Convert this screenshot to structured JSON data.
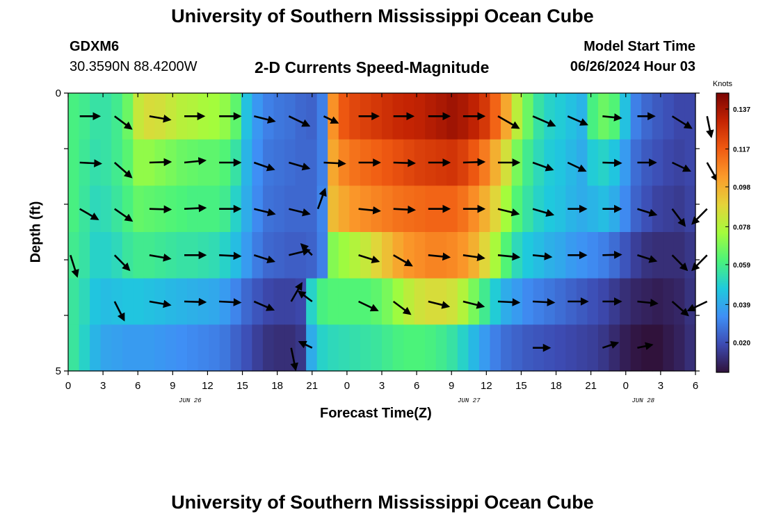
{
  "header": {
    "title": "University of Southern Mississippi Ocean Cube",
    "station": "GDXM6",
    "coords": "30.3590N  88.4200W",
    "subtitle": "2-D Currents Speed-Magnitude",
    "model_start_label": "Model Start Time",
    "model_start_value": "06/26/2024 Hour 03"
  },
  "footer": {
    "title": "University of Southern Mississippi Ocean Cube"
  },
  "colors": {
    "scale": [
      "#30123b",
      "#3d4bb2",
      "#3f8ff5",
      "#1fc9dd",
      "#4bf37a",
      "#a4fc3c",
      "#e5d33a",
      "#fb9b2b",
      "#f05b12",
      "#c42403",
      "#7a0403"
    ]
  },
  "chart_data": {
    "type": "heatmap",
    "xlabel": "Forecast Time(Z)",
    "ylabel": "Depth (ft)",
    "x_ticks": [
      "0",
      "3",
      "6",
      "9",
      "12",
      "15",
      "18",
      "21",
      "0",
      "3",
      "6",
      "9",
      "12",
      "15",
      "18",
      "21",
      "0",
      "3",
      "6"
    ],
    "date_labels": [
      {
        "label": "JUN 26",
        "tick_index": 3.5
      },
      {
        "label": "JUN 27",
        "tick_index": 11.5
      },
      {
        "label": "JUN 28",
        "tick_index": 16.5
      }
    ],
    "y_ticks": [
      "0",
      "5"
    ],
    "ylim": [
      0,
      5
    ],
    "colorbar": {
      "label": "Knots",
      "ticks": [
        "0.137",
        "0.117",
        "0.098",
        "0.078",
        "0.059",
        "0.039",
        "0.020"
      ],
      "range": [
        0.005,
        0.145
      ]
    },
    "hours": [
      0,
      1,
      2,
      3,
      4,
      5,
      6,
      7,
      8,
      9,
      10,
      11,
      12,
      13,
      14,
      15,
      16,
      17,
      18,
      19,
      20,
      21,
      22,
      23,
      24,
      25,
      26,
      27,
      28,
      29,
      30,
      31,
      32,
      33,
      34,
      35,
      36,
      37,
      38,
      39,
      40,
      41,
      42,
      43,
      44,
      45,
      46,
      47,
      48,
      49,
      50,
      51,
      52,
      53,
      54,
      55,
      56,
      57
    ],
    "speed_rows": [
      [
        0.06,
        0.058,
        0.055,
        0.055,
        0.058,
        0.066,
        0.082,
        0.086,
        0.085,
        0.082,
        0.079,
        0.078,
        0.076,
        0.075,
        0.072,
        0.064,
        0.045,
        0.035,
        0.03,
        0.028,
        0.027,
        0.025,
        0.024,
        0.03,
        0.105,
        0.118,
        0.122,
        0.124,
        0.126,
        0.128,
        0.13,
        0.131,
        0.132,
        0.134,
        0.136,
        0.138,
        0.136,
        0.132,
        0.126,
        0.115,
        0.1,
        0.08,
        0.066,
        0.055,
        0.05,
        0.048,
        0.045,
        0.042,
        0.06,
        0.066,
        0.062,
        0.045,
        0.03,
        0.025,
        0.022,
        0.02,
        0.018,
        0.018
      ],
      [
        0.06,
        0.057,
        0.054,
        0.055,
        0.058,
        0.063,
        0.072,
        0.072,
        0.07,
        0.068,
        0.066,
        0.065,
        0.064,
        0.064,
        0.062,
        0.055,
        0.042,
        0.033,
        0.028,
        0.027,
        0.026,
        0.025,
        0.025,
        0.03,
        0.1,
        0.108,
        0.112,
        0.114,
        0.116,
        0.118,
        0.12,
        0.122,
        0.124,
        0.125,
        0.126,
        0.127,
        0.124,
        0.118,
        0.11,
        0.098,
        0.085,
        0.068,
        0.058,
        0.052,
        0.048,
        0.046,
        0.043,
        0.04,
        0.048,
        0.05,
        0.046,
        0.036,
        0.026,
        0.022,
        0.02,
        0.018,
        0.017,
        0.018
      ],
      [
        0.06,
        0.056,
        0.052,
        0.053,
        0.056,
        0.06,
        0.065,
        0.064,
        0.063,
        0.062,
        0.061,
        0.06,
        0.06,
        0.06,
        0.058,
        0.05,
        0.04,
        0.032,
        0.027,
        0.026,
        0.025,
        0.025,
        0.025,
        0.031,
        0.095,
        0.1,
        0.104,
        0.106,
        0.108,
        0.11,
        0.112,
        0.113,
        0.114,
        0.115,
        0.115,
        0.115,
        0.112,
        0.106,
        0.098,
        0.088,
        0.075,
        0.062,
        0.055,
        0.05,
        0.047,
        0.045,
        0.042,
        0.04,
        0.042,
        0.044,
        0.04,
        0.032,
        0.024,
        0.02,
        0.017,
        0.016,
        0.015,
        0.017
      ],
      [
        0.058,
        0.055,
        0.05,
        0.05,
        0.052,
        0.056,
        0.058,
        0.058,
        0.057,
        0.056,
        0.055,
        0.055,
        0.054,
        0.053,
        0.05,
        0.044,
        0.036,
        0.029,
        0.025,
        0.024,
        0.023,
        0.023,
        0.024,
        0.03,
        0.07,
        0.074,
        0.078,
        0.082,
        0.088,
        0.094,
        0.1,
        0.104,
        0.106,
        0.108,
        0.108,
        0.107,
        0.104,
        0.098,
        0.088,
        0.076,
        0.062,
        0.052,
        0.047,
        0.044,
        0.041,
        0.039,
        0.036,
        0.034,
        0.032,
        0.03,
        0.026,
        0.021,
        0.016,
        0.013,
        0.012,
        0.012,
        0.012,
        0.014
      ],
      [
        0.056,
        0.052,
        0.046,
        0.044,
        0.045,
        0.046,
        0.046,
        0.045,
        0.044,
        0.043,
        0.042,
        0.041,
        0.04,
        0.039,
        0.036,
        0.031,
        0.025,
        0.021,
        0.018,
        0.017,
        0.017,
        0.018,
        0.05,
        0.06,
        0.062,
        0.062,
        0.062,
        0.062,
        0.064,
        0.068,
        0.074,
        0.08,
        0.084,
        0.086,
        0.086,
        0.084,
        0.078,
        0.068,
        0.058,
        0.048,
        0.04,
        0.036,
        0.032,
        0.03,
        0.028,
        0.026,
        0.024,
        0.022,
        0.02,
        0.018,
        0.015,
        0.012,
        0.01,
        0.009,
        0.008,
        0.009,
        0.01,
        0.013
      ],
      [
        0.056,
        0.05,
        0.042,
        0.038,
        0.037,
        0.036,
        0.036,
        0.036,
        0.035,
        0.034,
        0.033,
        0.032,
        0.031,
        0.03,
        0.028,
        0.024,
        0.02,
        0.016,
        0.013,
        0.012,
        0.012,
        0.014,
        0.04,
        0.05,
        0.052,
        0.053,
        0.054,
        0.055,
        0.056,
        0.058,
        0.06,
        0.061,
        0.061,
        0.06,
        0.058,
        0.055,
        0.05,
        0.043,
        0.036,
        0.03,
        0.026,
        0.024,
        0.022,
        0.021,
        0.02,
        0.019,
        0.018,
        0.017,
        0.016,
        0.014,
        0.011,
        0.008,
        0.006,
        0.005,
        0.005,
        0.007,
        0.009,
        0.012
      ]
    ],
    "vectors": [
      {
        "hour": 1,
        "row": 0,
        "u": 1,
        "v": 0,
        "len": 28
      },
      {
        "hour": 4,
        "row": 0,
        "u": 0.8,
        "v": 0.6,
        "len": 30
      },
      {
        "hour": 7,
        "row": 0,
        "u": 0.98,
        "v": 0.17,
        "len": 30
      },
      {
        "hour": 10,
        "row": 0,
        "u": 1,
        "v": 0,
        "len": 28
      },
      {
        "hour": 13,
        "row": 0,
        "u": 1,
        "v": 0,
        "len": 30
      },
      {
        "hour": 16,
        "row": 0,
        "u": 0.97,
        "v": 0.24,
        "len": 30
      },
      {
        "hour": 19,
        "row": 0,
        "u": 0.9,
        "v": 0.43,
        "len": 32
      },
      {
        "hour": 22,
        "row": 0,
        "u": 0.9,
        "v": 0.43,
        "len": 22
      },
      {
        "hour": 25,
        "row": 0,
        "u": 1,
        "v": 0,
        "len": 28
      },
      {
        "hour": 28,
        "row": 0,
        "u": 1,
        "v": 0,
        "len": 28
      },
      {
        "hour": 31,
        "row": 0,
        "u": 1,
        "v": 0,
        "len": 30
      },
      {
        "hour": 34,
        "row": 0,
        "u": 1,
        "v": 0,
        "len": 30
      },
      {
        "hour": 37,
        "row": 0,
        "u": 0.87,
        "v": 0.5,
        "len": 34
      },
      {
        "hour": 40,
        "row": 0,
        "u": 0.92,
        "v": 0.4,
        "len": 34
      },
      {
        "hour": 43,
        "row": 0,
        "u": 0.92,
        "v": 0.4,
        "len": 30
      },
      {
        "hour": 46,
        "row": 0,
        "u": 1,
        "v": 0.1,
        "len": 26
      },
      {
        "hour": 49,
        "row": 0,
        "u": 1,
        "v": 0,
        "len": 24
      },
      {
        "hour": 52,
        "row": 0,
        "u": 0.85,
        "v": 0.53,
        "len": 32
      },
      {
        "hour": 55,
        "row": 0,
        "u": 0.2,
        "v": 0.98,
        "len": 30
      },
      {
        "hour": 1,
        "row": 1,
        "u": 1,
        "v": 0.05,
        "len": 30
      },
      {
        "hour": 4,
        "row": 1,
        "u": 0.75,
        "v": 0.66,
        "len": 32
      },
      {
        "hour": 7,
        "row": 1,
        "u": 1,
        "v": -0.03,
        "len": 30
      },
      {
        "hour": 10,
        "row": 1,
        "u": 0.99,
        "v": -0.1,
        "len": 30
      },
      {
        "hour": 13,
        "row": 1,
        "u": 1,
        "v": 0,
        "len": 30
      },
      {
        "hour": 16,
        "row": 1,
        "u": 0.94,
        "v": 0.33,
        "len": 30
      },
      {
        "hour": 19,
        "row": 1,
        "u": 0.96,
        "v": 0.28,
        "len": 30
      },
      {
        "hour": 22,
        "row": 1,
        "u": 1,
        "v": 0.05,
        "len": 30
      },
      {
        "hour": 25,
        "row": 1,
        "u": 1,
        "v": 0,
        "len": 30
      },
      {
        "hour": 28,
        "row": 1,
        "u": 1,
        "v": 0.03,
        "len": 30
      },
      {
        "hour": 31,
        "row": 1,
        "u": 1,
        "v": 0,
        "len": 30
      },
      {
        "hour": 34,
        "row": 1,
        "u": 1,
        "v": -0.03,
        "len": 30
      },
      {
        "hour": 37,
        "row": 1,
        "u": 1,
        "v": 0,
        "len": 30
      },
      {
        "hour": 40,
        "row": 1,
        "u": 0.94,
        "v": 0.34,
        "len": 30
      },
      {
        "hour": 43,
        "row": 1,
        "u": 0.9,
        "v": 0.43,
        "len": 28
      },
      {
        "hour": 46,
        "row": 1,
        "u": 1,
        "v": 0.03,
        "len": 26
      },
      {
        "hour": 49,
        "row": 1,
        "u": 1,
        "v": 0,
        "len": 26
      },
      {
        "hour": 52,
        "row": 1,
        "u": 0.9,
        "v": 0.43,
        "len": 28
      },
      {
        "hour": 55,
        "row": 1,
        "u": 0.5,
        "v": 0.87,
        "len": 30
      },
      {
        "hour": 1,
        "row": 2,
        "u": 0.86,
        "v": 0.5,
        "len": 30
      },
      {
        "hour": 4,
        "row": 2,
        "u": 0.82,
        "v": 0.57,
        "len": 30
      },
      {
        "hour": 7,
        "row": 2,
        "u": 1,
        "v": 0.03,
        "len": 30
      },
      {
        "hour": 10,
        "row": 2,
        "u": 1,
        "v": -0.05,
        "len": 30
      },
      {
        "hour": 13,
        "row": 2,
        "u": 1,
        "v": 0,
        "len": 30
      },
      {
        "hour": 16,
        "row": 2,
        "u": 0.97,
        "v": 0.24,
        "len": 30
      },
      {
        "hour": 19,
        "row": 2,
        "u": 0.97,
        "v": 0.24,
        "len": 30
      },
      {
        "hour": 21.5,
        "row": 2,
        "u": 0.34,
        "v": -0.94,
        "len": 30
      },
      {
        "hour": 25,
        "row": 2,
        "u": 1,
        "v": 0.1,
        "len": 30
      },
      {
        "hour": 28,
        "row": 2,
        "u": 1,
        "v": 0.05,
        "len": 30
      },
      {
        "hour": 31,
        "row": 2,
        "u": 1,
        "v": 0,
        "len": 30
      },
      {
        "hour": 34,
        "row": 2,
        "u": 1,
        "v": 0,
        "len": 30
      },
      {
        "hour": 37,
        "row": 2,
        "u": 0.97,
        "v": 0.24,
        "len": 30
      },
      {
        "hour": 40,
        "row": 2,
        "u": 0.96,
        "v": 0.28,
        "len": 30
      },
      {
        "hour": 43,
        "row": 2,
        "u": 1,
        "v": 0,
        "len": 26
      },
      {
        "hour": 46,
        "row": 2,
        "u": 1,
        "v": 0,
        "len": 26
      },
      {
        "hour": 49,
        "row": 2,
        "u": 0.95,
        "v": 0.3,
        "len": 28
      },
      {
        "hour": 52,
        "row": 2,
        "u": 0.6,
        "v": 0.8,
        "len": 30
      },
      {
        "hour": 55,
        "row": 2,
        "u": -0.7,
        "v": 0.71,
        "len": 30
      },
      {
        "hour": 0.2,
        "row": 3,
        "u": 0.3,
        "v": 0.95,
        "len": 32
      },
      {
        "hour": 4,
        "row": 3,
        "u": 0.7,
        "v": 0.71,
        "len": 30
      },
      {
        "hour": 7,
        "row": 3,
        "u": 0.98,
        "v": 0.17,
        "len": 30
      },
      {
        "hour": 10,
        "row": 3,
        "u": 1,
        "v": 0,
        "len": 30
      },
      {
        "hour": 13,
        "row": 3,
        "u": 1,
        "v": 0.05,
        "len": 30
      },
      {
        "hour": 16,
        "row": 3,
        "u": 0.95,
        "v": 0.3,
        "len": 30
      },
      {
        "hour": 19,
        "row": 3,
        "u": 0.97,
        "v": -0.24,
        "len": 30
      },
      {
        "hour": 21,
        "row": 3,
        "u": -0.7,
        "v": -0.71,
        "len": 22
      },
      {
        "hour": 25,
        "row": 3,
        "u": 0.95,
        "v": 0.3,
        "len": 30
      },
      {
        "hour": 28,
        "row": 3,
        "u": 0.87,
        "v": 0.5,
        "len": 30
      },
      {
        "hour": 31,
        "row": 3,
        "u": 1,
        "v": 0.1,
        "len": 30
      },
      {
        "hour": 34,
        "row": 3,
        "u": 0.99,
        "v": 0.14,
        "len": 30
      },
      {
        "hour": 37,
        "row": 3,
        "u": 1,
        "v": 0.1,
        "len": 30
      },
      {
        "hour": 40,
        "row": 3,
        "u": 1,
        "v": 0.1,
        "len": 26
      },
      {
        "hour": 43,
        "row": 3,
        "u": 1,
        "v": 0,
        "len": 26
      },
      {
        "hour": 46,
        "row": 3,
        "u": 1,
        "v": -0.03,
        "len": 26
      },
      {
        "hour": 49,
        "row": 3,
        "u": 0.95,
        "v": 0.3,
        "len": 28
      },
      {
        "hour": 52,
        "row": 3,
        "u": 0.7,
        "v": 0.71,
        "len": 30
      },
      {
        "hour": 55,
        "row": 3,
        "u": -0.7,
        "v": 0.71,
        "len": 30
      },
      {
        "hour": 4,
        "row": 4,
        "u": 0.45,
        "v": 0.89,
        "len": 30
      },
      {
        "hour": 7,
        "row": 4,
        "u": 0.98,
        "v": 0.17,
        "len": 30
      },
      {
        "hour": 10,
        "row": 4,
        "u": 1,
        "v": 0.03,
        "len": 30
      },
      {
        "hour": 13,
        "row": 4,
        "u": 1,
        "v": 0.05,
        "len": 30
      },
      {
        "hour": 16,
        "row": 4,
        "u": 0.92,
        "v": 0.4,
        "len": 30
      },
      {
        "hour": 19.2,
        "row": 4,
        "u": 0.5,
        "v": -0.87,
        "len": 30
      },
      {
        "hour": 21,
        "row": 4,
        "u": -0.8,
        "v": -0.6,
        "len": 24
      },
      {
        "hour": 25,
        "row": 4,
        "u": 0.9,
        "v": 0.43,
        "len": 30
      },
      {
        "hour": 28,
        "row": 4,
        "u": 0.8,
        "v": 0.6,
        "len": 30
      },
      {
        "hour": 31,
        "row": 4,
        "u": 0.97,
        "v": 0.24,
        "len": 30
      },
      {
        "hour": 34,
        "row": 4,
        "u": 0.97,
        "v": 0.24,
        "len": 30
      },
      {
        "hour": 37,
        "row": 4,
        "u": 1,
        "v": 0.05,
        "len": 30
      },
      {
        "hour": 40,
        "row": 4,
        "u": 1,
        "v": 0.05,
        "len": 30
      },
      {
        "hour": 43,
        "row": 4,
        "u": 1,
        "v": 0,
        "len": 28
      },
      {
        "hour": 46,
        "row": 4,
        "u": 1,
        "v": 0,
        "len": 26
      },
      {
        "hour": 49,
        "row": 4,
        "u": 1,
        "v": 0.1,
        "len": 28
      },
      {
        "hour": 52,
        "row": 4,
        "u": 0.75,
        "v": 0.66,
        "len": 30
      },
      {
        "hour": 55,
        "row": 4,
        "u": -0.9,
        "v": 0.43,
        "len": 30
      },
      {
        "hour": 19.2,
        "row": 5,
        "u": 0.2,
        "v": 0.98,
        "len": 32
      },
      {
        "hour": 21,
        "row": 5,
        "u": -0.9,
        "v": -0.43,
        "len": 20
      },
      {
        "hour": 40,
        "row": 5,
        "u": 1,
        "v": 0,
        "len": 24
      },
      {
        "hour": 46,
        "row": 5,
        "u": 0.9,
        "v": -0.3,
        "len": 24
      },
      {
        "hour": 49,
        "row": 5,
        "u": 0.95,
        "v": -0.2,
        "len": 22
      }
    ]
  }
}
